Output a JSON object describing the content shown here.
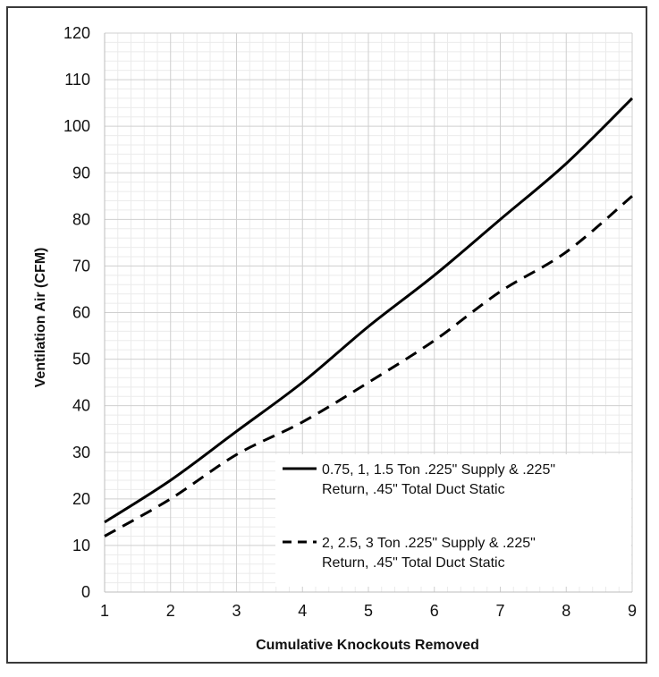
{
  "chart_data": {
    "type": "line",
    "title": "",
    "xlabel": "Cumulative Knockouts Removed",
    "ylabel": "Ventilation Air (CFM)",
    "xlim": [
      1,
      9
    ],
    "ylim": [
      0,
      120
    ],
    "x_ticks": [
      1,
      2,
      3,
      4,
      5,
      6,
      7,
      8,
      9
    ],
    "y_ticks": [
      0,
      10,
      20,
      30,
      40,
      50,
      60,
      70,
      80,
      90,
      100,
      110,
      120
    ],
    "grid": true,
    "legend_position": "bottom-right",
    "series": [
      {
        "name": "0.75, 1, 1.5 Ton .225\" Supply & .225\" Return, .45\" Total Duct Static",
        "legend_lines": [
          "0.75, 1, 1.5 Ton .225\" Supply & .225\"",
          "Return, .45\" Total Duct Static"
        ],
        "style": "solid",
        "color": "#000000",
        "x": [
          1,
          2,
          3,
          4,
          5,
          6,
          7,
          8,
          9
        ],
        "y": [
          15,
          24,
          34.5,
          45,
          57,
          68,
          80,
          92,
          106
        ]
      },
      {
        "name": "2, 2.5, 3 Ton .225\" Supply & .225\" Return, .45\" Total Duct Static",
        "legend_lines": [
          "2, 2.5, 3 Ton .225\" Supply & .225\"",
          "Return, .45\" Total Duct Static"
        ],
        "style": "dashed",
        "color": "#000000",
        "x": [
          1,
          2,
          3,
          4,
          5,
          6,
          7,
          8,
          9
        ],
        "y": [
          12,
          20,
          29.5,
          36.5,
          45,
          54,
          64.5,
          73,
          85
        ]
      }
    ]
  }
}
